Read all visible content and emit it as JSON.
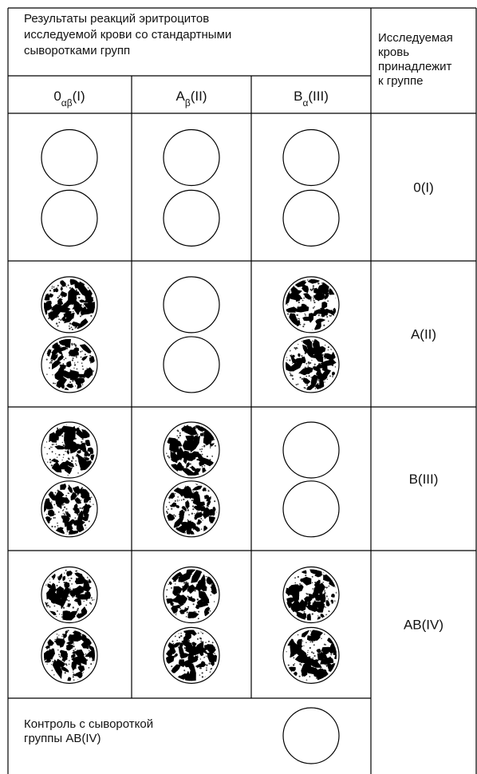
{
  "header": {
    "results_title_lines": [
      "Результаты реакций эритроцитов",
      "исследуемой крови со стандартными",
      "сыворотками групп"
    ],
    "belongs_title_lines": [
      "Исследуемая",
      "кровь",
      "принадлежит",
      "к группе"
    ]
  },
  "columns": [
    {
      "base": "0",
      "sub": "αβ",
      "suffix": "(I)"
    },
    {
      "base": "A",
      "sub": "β",
      "suffix": "(II)"
    },
    {
      "base": "B",
      "sub": "α",
      "suffix": "(III)"
    }
  ],
  "rows": [
    {
      "group": "0(I)",
      "agglutination": [
        false,
        false,
        false
      ]
    },
    {
      "group": "A(II)",
      "agglutination": [
        true,
        false,
        true
      ]
    },
    {
      "group": "B(III)",
      "agglutination": [
        true,
        true,
        false
      ]
    },
    {
      "group": "AB(IV)",
      "agglutination": [
        true,
        true,
        true
      ]
    }
  ],
  "control": {
    "label_lines": [
      "Контроль с сывороткой",
      "группы AB(IV)"
    ],
    "agglutination": false
  }
}
